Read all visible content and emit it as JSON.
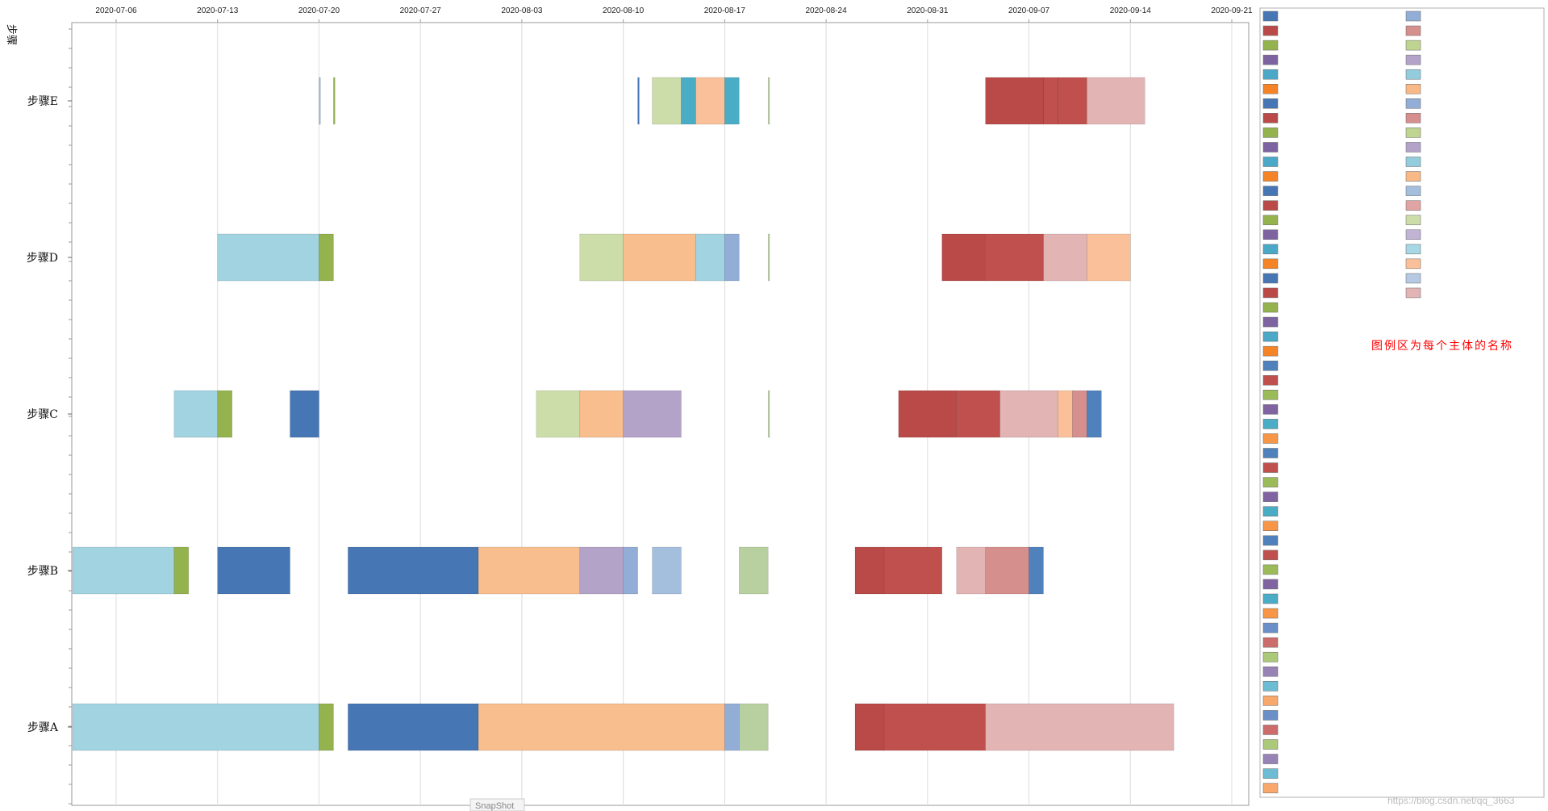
{
  "chart_data": {
    "type": "gantt",
    "x_axis": {
      "tick_labels": [
        "2020-07-06",
        "2020-07-13",
        "2020-07-20",
        "2020-07-27",
        "2020-08-03",
        "2020-08-10",
        "2020-08-17",
        "2020-08-24",
        "2020-08-31",
        "2020-09-07",
        "2020-09-14",
        "2020-09-21"
      ],
      "range": [
        "2020-07-03",
        "2020-09-22"
      ],
      "grid": true
    },
    "y_axis": {
      "label": "步骤",
      "categories": [
        "步骤A",
        "步骤B",
        "步骤C",
        "步骤D",
        "步骤E"
      ]
    },
    "palette": [
      "#4776b4",
      "#b94a48",
      "#94b24e",
      "#7e63a1",
      "#4ba8c6",
      "#f58426",
      "#bfd491",
      "#f8be8e",
      "#a2d3e1",
      "#93aed6",
      "#b3a3c9",
      "#e2b4b3",
      "#d58f8d",
      "#a4bfdd",
      "#b8d09f",
      "#c0504d",
      "#4f81bd",
      "#9bbb59",
      "#8064a2",
      "#4bacc6",
      "#f79646",
      "#f9c09a",
      "#a5c3e0",
      "#cdddaa"
    ],
    "tasks": [
      {
        "category": "步骤A",
        "start": "2020-07-03",
        "end": "2020-07-20",
        "color": "#a2d3e1"
      },
      {
        "category": "步骤A",
        "start": "2020-07-20",
        "end": "2020-07-21",
        "color": "#94b24e"
      },
      {
        "category": "步骤A",
        "start": "2020-07-22",
        "end": "2020-07-31",
        "color": "#4776b4"
      },
      {
        "category": "步骤A",
        "start": "2020-07-31",
        "end": "2020-08-17",
        "color": "#f8be8e"
      },
      {
        "category": "步骤A",
        "start": "2020-08-17",
        "end": "2020-08-18",
        "color": "#93aed6"
      },
      {
        "category": "步骤A",
        "start": "2020-08-18",
        "end": "2020-08-20",
        "color": "#b8d09f"
      },
      {
        "category": "步骤A",
        "start": "2020-08-26",
        "end": "2020-08-28",
        "color": "#b94a48"
      },
      {
        "category": "步骤A",
        "start": "2020-08-28",
        "end": "2020-09-04",
        "color": "#c0504d"
      },
      {
        "category": "步骤A",
        "start": "2020-09-04",
        "end": "2020-09-17",
        "color": "#e2b4b3"
      },
      {
        "category": "步骤B",
        "start": "2020-07-03",
        "end": "2020-07-10",
        "color": "#a2d3e1"
      },
      {
        "category": "步骤B",
        "start": "2020-07-10",
        "end": "2020-07-11",
        "color": "#94b24e"
      },
      {
        "category": "步骤B",
        "start": "2020-07-13",
        "end": "2020-07-18",
        "color": "#4776b4"
      },
      {
        "category": "步骤B",
        "start": "2020-07-22",
        "end": "2020-07-31",
        "color": "#4776b4"
      },
      {
        "category": "步骤B",
        "start": "2020-07-31",
        "end": "2020-08-07",
        "color": "#f8be8e"
      },
      {
        "category": "步骤B",
        "start": "2020-08-07",
        "end": "2020-08-10",
        "color": "#b3a3c9"
      },
      {
        "category": "步骤B",
        "start": "2020-08-10",
        "end": "2020-08-11",
        "color": "#93aed6"
      },
      {
        "category": "步骤B",
        "start": "2020-08-12",
        "end": "2020-08-14",
        "color": "#a4bfdd"
      },
      {
        "category": "步骤B",
        "start": "2020-08-18",
        "end": "2020-08-20",
        "color": "#b8d09f"
      },
      {
        "category": "步骤B",
        "start": "2020-08-26",
        "end": "2020-08-28",
        "color": "#b94a48"
      },
      {
        "category": "步骤B",
        "start": "2020-08-28",
        "end": "2020-09-01",
        "color": "#c0504d"
      },
      {
        "category": "步骤B",
        "start": "2020-09-02",
        "end": "2020-09-04",
        "color": "#e2b4b3"
      },
      {
        "category": "步骤B",
        "start": "2020-09-04",
        "end": "2020-09-07",
        "color": "#d58f8d"
      },
      {
        "category": "步骤B",
        "start": "2020-09-07",
        "end": "2020-09-08",
        "color": "#4f81bd"
      },
      {
        "category": "步骤C",
        "start": "2020-07-10",
        "end": "2020-07-13",
        "color": "#a2d3e1"
      },
      {
        "category": "步骤C",
        "start": "2020-07-13",
        "end": "2020-07-14",
        "color": "#94b24e"
      },
      {
        "category": "步骤C",
        "start": "2020-07-18",
        "end": "2020-07-20",
        "color": "#4776b4"
      },
      {
        "category": "步骤C",
        "start": "2020-08-04",
        "end": "2020-08-07",
        "color": "#cdddaa"
      },
      {
        "category": "步骤C",
        "start": "2020-08-07",
        "end": "2020-08-10",
        "color": "#f8be8e"
      },
      {
        "category": "步骤C",
        "start": "2020-08-10",
        "end": "2020-08-14",
        "color": "#b3a3c9"
      },
      {
        "category": "步骤C",
        "start": "2020-08-20",
        "end": "2020-08-20.1",
        "color": "#b8d09f"
      },
      {
        "category": "步骤C",
        "start": "2020-08-29",
        "end": "2020-09-02",
        "color": "#b94a48"
      },
      {
        "category": "步骤C",
        "start": "2020-09-02",
        "end": "2020-09-05",
        "color": "#c0504d"
      },
      {
        "category": "步骤C",
        "start": "2020-09-05",
        "end": "2020-09-09",
        "color": "#e2b4b3"
      },
      {
        "category": "步骤C",
        "start": "2020-09-09",
        "end": "2020-09-10",
        "color": "#f9c09a"
      },
      {
        "category": "步骤C",
        "start": "2020-09-10",
        "end": "2020-09-11",
        "color": "#d58f8d"
      },
      {
        "category": "步骤C",
        "start": "2020-09-11",
        "end": "2020-09-12",
        "color": "#4f81bd"
      },
      {
        "category": "步骤D",
        "start": "2020-07-13",
        "end": "2020-07-20",
        "color": "#a2d3e1"
      },
      {
        "category": "步骤D",
        "start": "2020-07-20",
        "end": "2020-07-21",
        "color": "#94b24e"
      },
      {
        "category": "步骤D",
        "start": "2020-08-07",
        "end": "2020-08-10",
        "color": "#cdddaa"
      },
      {
        "category": "步骤D",
        "start": "2020-08-10",
        "end": "2020-08-15",
        "color": "#f8be8e"
      },
      {
        "category": "步骤D",
        "start": "2020-08-15",
        "end": "2020-08-17",
        "color": "#a2d3e1"
      },
      {
        "category": "步骤D",
        "start": "2020-08-17",
        "end": "2020-08-18",
        "color": "#93aed6"
      },
      {
        "category": "步骤D",
        "start": "2020-08-20",
        "end": "2020-08-20.1",
        "color": "#b8d09f"
      },
      {
        "category": "步骤D",
        "start": "2020-09-01",
        "end": "2020-09-04",
        "color": "#b94a48"
      },
      {
        "category": "步骤D",
        "start": "2020-09-04",
        "end": "2020-09-08",
        "color": "#c0504d"
      },
      {
        "category": "步骤D",
        "start": "2020-09-08",
        "end": "2020-09-11",
        "color": "#e2b4b3"
      },
      {
        "category": "步骤D",
        "start": "2020-09-11",
        "end": "2020-09-14",
        "color": "#f9c09a"
      },
      {
        "category": "步骤E",
        "start": "2020-07-20",
        "end": "2020-07-20.1",
        "color": "#a4bfdd"
      },
      {
        "category": "步骤E",
        "start": "2020-07-21",
        "end": "2020-07-21.1",
        "color": "#94b24e"
      },
      {
        "category": "步骤E",
        "start": "2020-08-11",
        "end": "2020-08-11.1",
        "color": "#4776b4"
      },
      {
        "category": "步骤E",
        "start": "2020-08-12",
        "end": "2020-08-14",
        "color": "#cdddaa"
      },
      {
        "category": "步骤E",
        "start": "2020-08-14",
        "end": "2020-08-15",
        "color": "#4bacc6"
      },
      {
        "category": "步骤E",
        "start": "2020-08-15",
        "end": "2020-08-17",
        "color": "#f9c09a"
      },
      {
        "category": "步骤E",
        "start": "2020-08-17",
        "end": "2020-08-18",
        "color": "#4bacc6"
      },
      {
        "category": "步骤E",
        "start": "2020-08-20",
        "end": "2020-08-20.1",
        "color": "#b8d09f"
      },
      {
        "category": "步骤E",
        "start": "2020-09-04",
        "end": "2020-09-08",
        "color": "#b94a48"
      },
      {
        "category": "步骤E",
        "start": "2020-09-08",
        "end": "2020-09-09",
        "color": "#c0504d"
      },
      {
        "category": "步骤E",
        "start": "2020-09-09",
        "end": "2020-09-11",
        "color": "#c0504d"
      },
      {
        "category": "步骤E",
        "start": "2020-09-11",
        "end": "2020-09-15",
        "color": "#e2b4b3"
      }
    ],
    "legend": {
      "placement": "right",
      "note": "图例区为每个主体的名称",
      "column1_colors": [
        "#4776b4",
        "#b94a48",
        "#94b24e",
        "#7e63a1",
        "#4ba8c6",
        "#f58426",
        "#4776b4",
        "#b94a48",
        "#94b24e",
        "#7e63a1",
        "#4ba8c6",
        "#f58426",
        "#4776b4",
        "#b94a48",
        "#94b24e",
        "#7e63a1",
        "#4ba8c6",
        "#f58426",
        "#4776b4",
        "#b94a48",
        "#94b24e",
        "#7e63a1",
        "#4ba8c6",
        "#f58426",
        "#4f81bd",
        "#c0504d",
        "#9bbb59",
        "#8064a2",
        "#4bacc6",
        "#f79646",
        "#4f81bd",
        "#c0504d",
        "#9bbb59",
        "#8064a2",
        "#4bacc6",
        "#f79646",
        "#4f81bd",
        "#c0504d",
        "#9bbb59",
        "#8064a2",
        "#4bacc6",
        "#f79646",
        "#6b8fc7",
        "#cd6d6b",
        "#acc879",
        "#9883b6",
        "#6cbcd3",
        "#f8a86a",
        "#6b8fc7",
        "#cd6d6b",
        "#acc879",
        "#9883b6",
        "#6cbcd3",
        "#f8a86a"
      ],
      "column2_colors": [
        "#93aed6",
        "#d58f8d",
        "#bfd491",
        "#b3a3c9",
        "#93cddd",
        "#f9b987",
        "#93aed6",
        "#d58f8d",
        "#bfd491",
        "#b3a3c9",
        "#93cddd",
        "#f9b987",
        "#a4bfdd",
        "#e2a4a3",
        "#cdddaa",
        "#c0b3d4",
        "#a5d7e4",
        "#fac09a",
        "#b5c9e3",
        "#e2b4b3"
      ]
    },
    "overlay_text": {
      "snapshot": "SnapShot",
      "watermark": "https://blog.csdn.net/qq_3663"
    }
  }
}
